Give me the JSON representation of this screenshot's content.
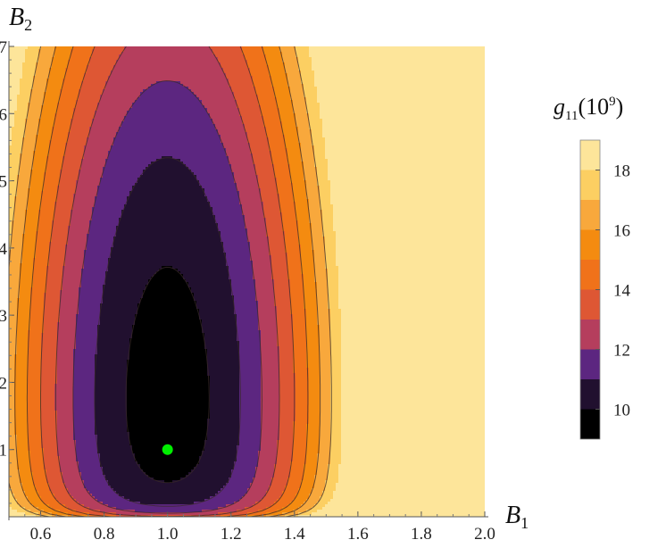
{
  "chart_data": {
    "type": "contour",
    "x_axis": {
      "label_main": "B",
      "label_sub": "1",
      "range": [
        0.5,
        2.0
      ],
      "ticks": [
        0.6,
        0.8,
        1.0,
        1.2,
        1.4,
        1.6,
        1.8,
        2.0
      ],
      "tick_labels": [
        "0.6",
        "0.8",
        "1.0",
        "1.2",
        "1.4",
        "1.6",
        "1.8",
        "2.0"
      ]
    },
    "y_axis": {
      "label_main": "B",
      "label_sub": "2",
      "range": [
        0,
        7
      ],
      "ticks": [
        1,
        2,
        3,
        4,
        5,
        6,
        7
      ],
      "tick_labels": [
        "1",
        "2",
        "3",
        "4",
        "5",
        "6",
        "7"
      ]
    },
    "colorbar": {
      "title_main": "g",
      "title_sub": "11",
      "title_paren": "(10",
      "title_exp": "9",
      "title_close": ")",
      "range": [
        9,
        19
      ],
      "ticks": [
        10,
        12,
        14,
        16,
        18
      ],
      "tick_labels": [
        "10",
        "12",
        "14",
        "16",
        "18"
      ],
      "levels": [
        9,
        10,
        11,
        12,
        13,
        14,
        15,
        16,
        17,
        18,
        19
      ],
      "colors": [
        "#000000",
        "#21102f",
        "#5c2680",
        "#b53e5d",
        "#de5734",
        "#f0721a",
        "#f48b10",
        "#f8a83c",
        "#fccf62",
        "#fde59a",
        "#ffffff"
      ]
    },
    "contour_levels": [
      10,
      11,
      12,
      13,
      14,
      15,
      16,
      17
    ],
    "minimum_marker": {
      "x": 1.0,
      "y": 1.0,
      "color": "#00ee00"
    }
  }
}
